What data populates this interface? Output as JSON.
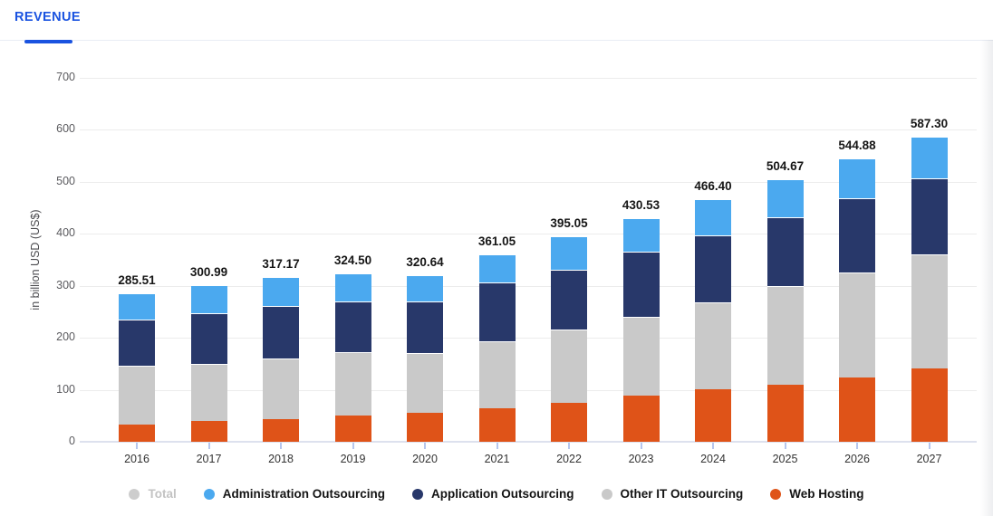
{
  "header": {
    "tab_label": "REVENUE"
  },
  "colors": {
    "accent": "#1a53e0",
    "grid": "#ececec",
    "axis_line": "#dde1ee",
    "tick": "#b6c6ee",
    "admin_blue": "#4ba9ef",
    "app_navy": "#28386a",
    "other_gray": "#c9c9c9",
    "web_orange": "#df5318",
    "total_dot_gray": "#cdcdcd"
  },
  "chart_data": {
    "type": "bar",
    "stacked": true,
    "title": "",
    "xlabel": "",
    "ylabel": "in billion USD (US$)",
    "ylim": [
      0,
      700
    ],
    "yticks": [
      0,
      100,
      200,
      300,
      400,
      500,
      600,
      700
    ],
    "grid": true,
    "legend_position": "bottom",
    "categories": [
      "2016",
      "2017",
      "2018",
      "2019",
      "2020",
      "2021",
      "2022",
      "2023",
      "2024",
      "2025",
      "2026",
      "2027"
    ],
    "totals": [
      285.51,
      300.99,
      317.17,
      324.5,
      320.64,
      361.05,
      395.05,
      430.53,
      466.4,
      504.67,
      544.88,
      587.3
    ],
    "total_labels": [
      "285.51",
      "300.99",
      "317.17",
      "324.50",
      "320.64",
      "361.05",
      "395.05",
      "430.53",
      "466.40",
      "504.67",
      "544.88",
      "587.30"
    ],
    "series": [
      {
        "name": "Web Hosting",
        "color": "#df5318",
        "values": [
          32.5,
          40.0,
          43.0,
          50.5,
          56.2,
          64.0,
          74.9,
          88.3,
          101.0,
          109.7,
          124.1,
          141.5
        ]
      },
      {
        "name": "Other IT Outsourcing",
        "color": "#c9c9c9",
        "values": [
          113.0,
          109.2,
          117.2,
          121.3,
          114.4,
          128.7,
          140.4,
          152.0,
          167.1,
          189.8,
          202.0,
          218.4
        ]
      },
      {
        "name": "Application Outsourcing",
        "color": "#28386a",
        "values": [
          90.0,
          98.0,
          100.4,
          98.6,
          98.7,
          113.7,
          115.0,
          124.8,
          128.8,
          132.3,
          141.7,
          146.2
        ]
      },
      {
        "name": "Administration Outsourcing",
        "color": "#4ba9ef",
        "values": [
          50.0,
          53.8,
          56.6,
          54.1,
          51.3,
          54.7,
          64.7,
          65.4,
          69.5,
          72.9,
          77.1,
          81.2
        ]
      }
    ],
    "legend": [
      {
        "label": "Total",
        "color": "#cdcdcd",
        "dimmed": true
      },
      {
        "label": "Administration Outsourcing",
        "color": "#4ba9ef",
        "dimmed": false
      },
      {
        "label": "Application Outsourcing",
        "color": "#28386a",
        "dimmed": false
      },
      {
        "label": "Other IT Outsourcing",
        "color": "#c9c9c9",
        "dimmed": false
      },
      {
        "label": "Web Hosting",
        "color": "#df5318",
        "dimmed": false
      }
    ]
  }
}
